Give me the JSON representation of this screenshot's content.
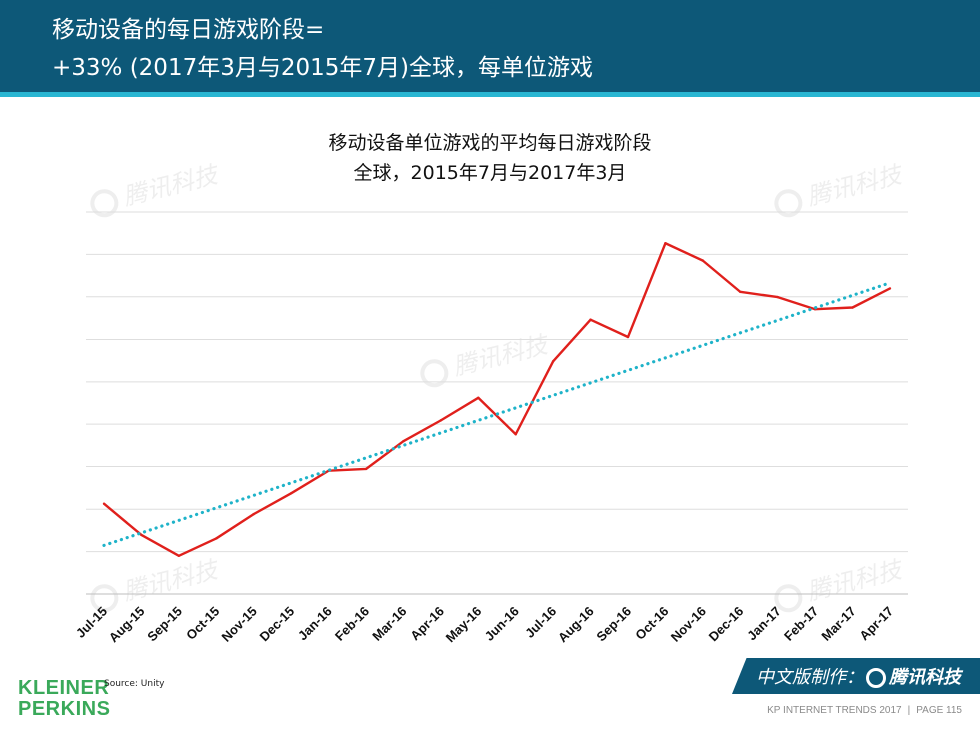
{
  "header": {
    "line1": "移动设备的每日游戏阶段=",
    "line2": "+33% (2017年3月与2015年7月)全球，每单位游戏"
  },
  "watermark": "腾讯科技",
  "chart_data": {
    "type": "line",
    "title": "移动设备单位游戏的平均每日游戏阶段",
    "subtitle": "全球，2015年7月与2017年3月",
    "categories": [
      "Jul-15",
      "Aug-15",
      "Sep-15",
      "Oct-15",
      "Nov-15",
      "Dec-15",
      "Jan-16",
      "Feb-16",
      "Mar-16",
      "Apr-16",
      "May-16",
      "Jun-16",
      "Jul-16",
      "Aug-16",
      "Sep-16",
      "Oct-16",
      "Nov-16",
      "Dec-16",
      "Jan-17",
      "Feb-17",
      "Mar-17",
      "Apr-17"
    ],
    "series": [
      {
        "values": [
          2.6,
          1.7,
          1.1,
          1.6,
          2.3,
          2.9,
          3.55,
          3.6,
          4.4,
          5.0,
          5.65,
          4.6,
          6.7,
          7.9,
          7.4,
          10.1,
          9.6,
          8.7,
          8.55,
          8.2,
          8.25,
          8.8
        ],
        "color": "#e0201c",
        "style": "solid"
      },
      {
        "values": [
          1.4,
          1.76,
          2.12,
          2.48,
          2.84,
          3.2,
          3.56,
          3.92,
          4.28,
          4.64,
          5.0,
          5.36,
          5.72,
          6.08,
          6.44,
          6.8,
          7.16,
          7.52,
          7.88,
          8.24,
          8.6,
          8.96
        ],
        "color": "#1fb3c9",
        "style": "dotted"
      }
    ],
    "ylim": [
      0,
      11
    ],
    "yticks": [
      0,
      1.22,
      2.44,
      3.67,
      4.89,
      6.11,
      7.33,
      8.56,
      9.78,
      11
    ],
    "grid": true,
    "legend": "none"
  },
  "source": "Source: Unity",
  "logo": {
    "line1": "KLEINER",
    "line2": "PERKINS"
  },
  "badge": {
    "prefix": "中文版制作：",
    "brand": "腾讯科技"
  },
  "footer": {
    "left": "KP INTERNET TRENDS 2017",
    "sep": "|",
    "right": "PAGE 115"
  }
}
